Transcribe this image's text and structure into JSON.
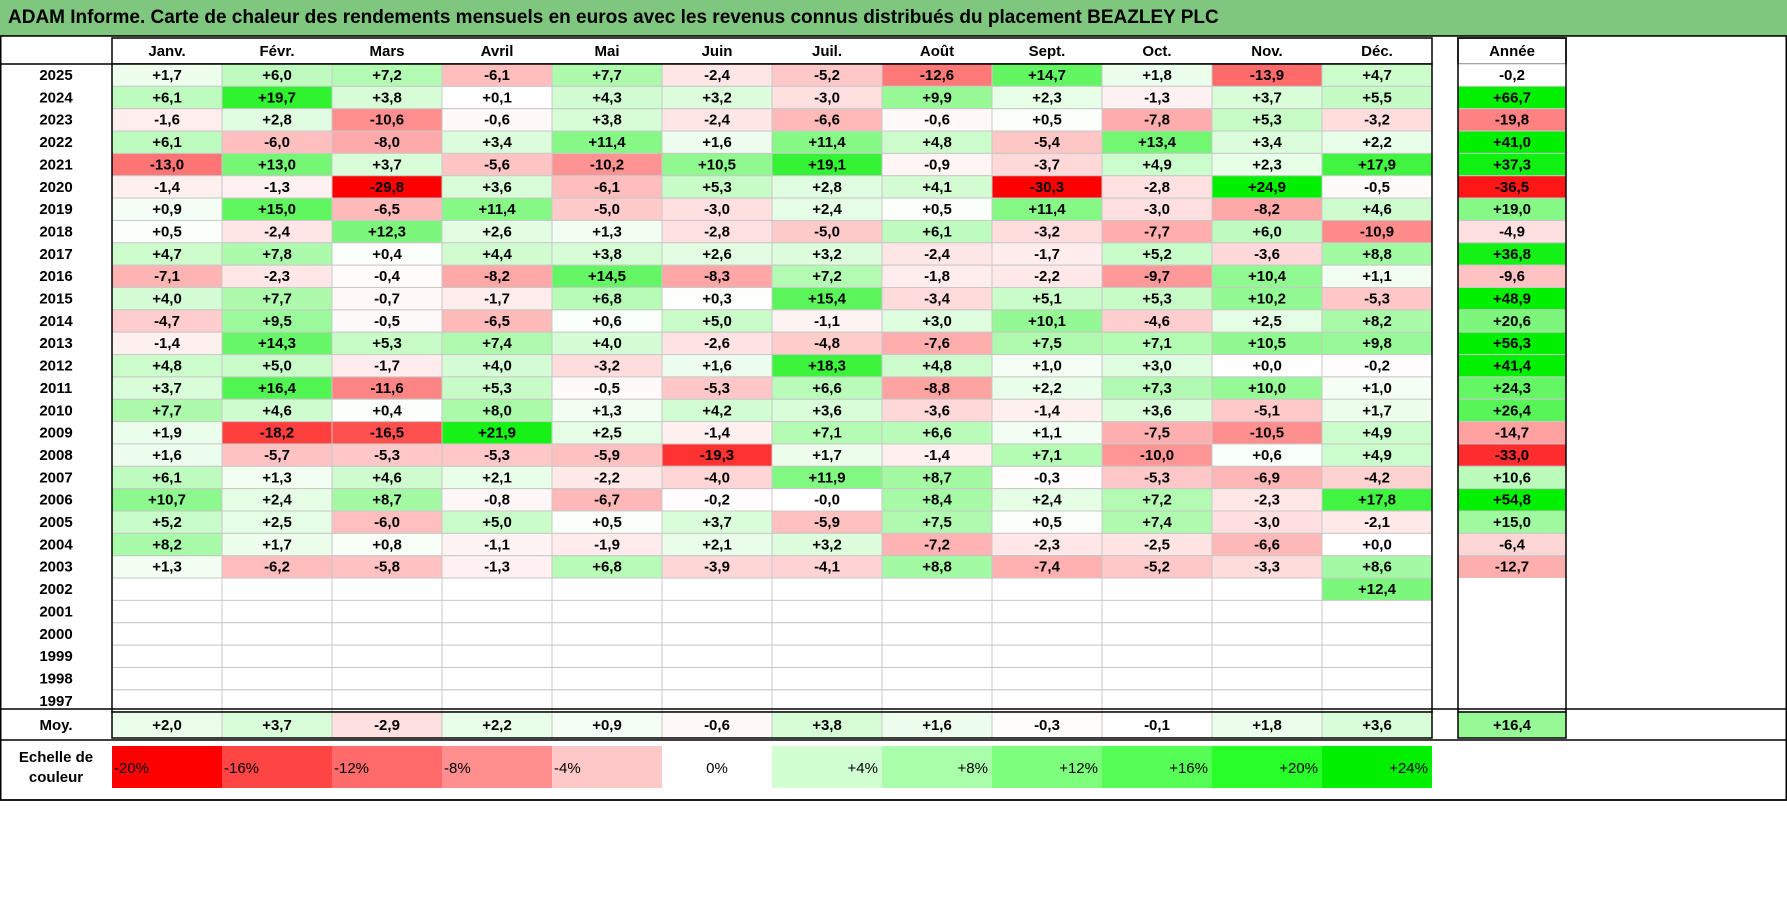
{
  "title": "ADAM Informe. Carte de chaleur des rendements mensuels en euros avec les revenus connus distribués du placement BEAZLEY PLC",
  "chart_data": {
    "type": "heatmap",
    "months": [
      "Janv.",
      "Févr.",
      "Mars",
      "Avril",
      "Mai",
      "Juin",
      "Juil.",
      "Août",
      "Sept.",
      "Oct.",
      "Nov.",
      "Déc."
    ],
    "year_header": "Année",
    "rows": [
      {
        "year": "2025",
        "values": [
          "+1,7",
          "+6,0",
          "+7,2",
          "-6,1",
          "+7,7",
          "-2,4",
          "-5,2",
          "-12,6",
          "+14,7",
          "+1,8",
          "-13,9",
          "+4,7"
        ],
        "annual": "-0,2"
      },
      {
        "year": "2024",
        "values": [
          "+6,1",
          "+19,7",
          "+3,8",
          "+0,1",
          "+4,3",
          "+3,2",
          "-3,0",
          "+9,9",
          "+2,3",
          "-1,3",
          "+3,7",
          "+5,5"
        ],
        "annual": "+66,7"
      },
      {
        "year": "2023",
        "values": [
          "-1,6",
          "+2,8",
          "-10,6",
          "-0,6",
          "+3,8",
          "-2,4",
          "-6,6",
          "-0,6",
          "+0,5",
          "-7,8",
          "+5,3",
          "-3,2"
        ],
        "annual": "-19,8"
      },
      {
        "year": "2022",
        "values": [
          "+6,1",
          "-6,0",
          "-8,0",
          "+3,4",
          "+11,4",
          "+1,6",
          "+11,4",
          "+4,8",
          "-5,4",
          "+13,4",
          "+3,4",
          "+2,2"
        ],
        "annual": "+41,0"
      },
      {
        "year": "2021",
        "values": [
          "-13,0",
          "+13,0",
          "+3,7",
          "-5,6",
          "-10,2",
          "+10,5",
          "+19,1",
          "-0,9",
          "-3,7",
          "+4,9",
          "+2,3",
          "+17,9"
        ],
        "annual": "+37,3"
      },
      {
        "year": "2020",
        "values": [
          "-1,4",
          "-1,3",
          "-29,8",
          "+3,6",
          "-6,1",
          "+5,3",
          "+2,8",
          "+4,1",
          "-30,3",
          "-2,8",
          "+24,9",
          "-0,5"
        ],
        "annual": "-36,5"
      },
      {
        "year": "2019",
        "values": [
          "+0,9",
          "+15,0",
          "-6,5",
          "+11,4",
          "-5,0",
          "-3,0",
          "+2,4",
          "+0,5",
          "+11,4",
          "-3,0",
          "-8,2",
          "+4,6"
        ],
        "annual": "+19,0"
      },
      {
        "year": "2018",
        "values": [
          "+0,5",
          "-2,4",
          "+12,3",
          "+2,6",
          "+1,3",
          "-2,8",
          "-5,0",
          "+6,1",
          "-3,2",
          "-7,7",
          "+6,0",
          "-10,9"
        ],
        "annual": "-4,9"
      },
      {
        "year": "2017",
        "values": [
          "+4,7",
          "+7,8",
          "+0,4",
          "+4,4",
          "+3,8",
          "+2,6",
          "+3,2",
          "-2,4",
          "-1,7",
          "+5,2",
          "-3,6",
          "+8,8"
        ],
        "annual": "+36,8"
      },
      {
        "year": "2016",
        "values": [
          "-7,1",
          "-2,3",
          "-0,4",
          "-8,2",
          "+14,5",
          "-8,3",
          "+7,2",
          "-1,8",
          "-2,2",
          "-9,7",
          "+10,4",
          "+1,1"
        ],
        "annual": "-9,6"
      },
      {
        "year": "2015",
        "values": [
          "+4,0",
          "+7,7",
          "-0,7",
          "-1,7",
          "+6,8",
          "+0,3",
          "+15,4",
          "-3,4",
          "+5,1",
          "+5,3",
          "+10,2",
          "-5,3"
        ],
        "annual": "+48,9"
      },
      {
        "year": "2014",
        "values": [
          "-4,7",
          "+9,5",
          "-0,5",
          "-6,5",
          "+0,6",
          "+5,0",
          "-1,1",
          "+3,0",
          "+10,1",
          "-4,6",
          "+2,5",
          "+8,2"
        ],
        "annual": "+20,6"
      },
      {
        "year": "2013",
        "values": [
          "-1,4",
          "+14,3",
          "+5,3",
          "+7,4",
          "+4,0",
          "-2,6",
          "-4,8",
          "-7,6",
          "+7,5",
          "+7,1",
          "+10,5",
          "+9,8"
        ],
        "annual": "+56,3"
      },
      {
        "year": "2012",
        "values": [
          "+4,8",
          "+5,0",
          "-1,7",
          "+4,0",
          "-3,2",
          "+1,6",
          "+18,3",
          "+4,8",
          "+1,0",
          "+3,0",
          "+0,0",
          "-0,2"
        ],
        "annual": "+41,4"
      },
      {
        "year": "2011",
        "values": [
          "+3,7",
          "+16,4",
          "-11,6",
          "+5,3",
          "-0,5",
          "-5,3",
          "+6,6",
          "-8,8",
          "+2,2",
          "+7,3",
          "+10,0",
          "+1,0"
        ],
        "annual": "+24,3"
      },
      {
        "year": "2010",
        "values": [
          "+7,7",
          "+4,6",
          "+0,4",
          "+8,0",
          "+1,3",
          "+4,2",
          "+3,6",
          "-3,6",
          "-1,4",
          "+3,6",
          "-5,1",
          "+1,7"
        ],
        "annual": "+26,4"
      },
      {
        "year": "2009",
        "values": [
          "+1,9",
          "-18,2",
          "-16,5",
          "+21,9",
          "+2,5",
          "-1,4",
          "+7,1",
          "+6,6",
          "+1,1",
          "-7,5",
          "-10,5",
          "+4,9"
        ],
        "annual": "-14,7"
      },
      {
        "year": "2008",
        "values": [
          "+1,6",
          "-5,7",
          "-5,3",
          "-5,3",
          "-5,9",
          "-19,3",
          "+1,7",
          "-1,4",
          "+7,1",
          "-10,0",
          "+0,6",
          "+4,9"
        ],
        "annual": "-33,0"
      },
      {
        "year": "2007",
        "values": [
          "+6,1",
          "+1,3",
          "+4,6",
          "+2,1",
          "-2,2",
          "-4,0",
          "+11,9",
          "+8,7",
          "-0,3",
          "-5,3",
          "-6,9",
          "-4,2"
        ],
        "annual": "+10,6"
      },
      {
        "year": "2006",
        "values": [
          "+10,7",
          "+2,4",
          "+8,7",
          "-0,8",
          "-6,7",
          "-0,2",
          "-0,0",
          "+8,4",
          "+2,4",
          "+7,2",
          "-2,3",
          "+17,8"
        ],
        "annual": "+54,8"
      },
      {
        "year": "2005",
        "values": [
          "+5,2",
          "+2,5",
          "-6,0",
          "+5,0",
          "+0,5",
          "+3,7",
          "-5,9",
          "+7,5",
          "+0,5",
          "+7,4",
          "-3,0",
          "-2,1"
        ],
        "annual": "+15,0"
      },
      {
        "year": "2004",
        "values": [
          "+8,2",
          "+1,7",
          "+0,8",
          "-1,1",
          "-1,9",
          "+2,1",
          "+3,2",
          "-7,2",
          "-2,3",
          "-2,5",
          "-6,6",
          "+0,0"
        ],
        "annual": "-6,4"
      },
      {
        "year": "2003",
        "values": [
          "+1,3",
          "-6,2",
          "-5,8",
          "-1,3",
          "+6,8",
          "-3,9",
          "-4,1",
          "+8,8",
          "-7,4",
          "-5,2",
          "-3,3",
          "+8,6"
        ],
        "annual": "-12,7"
      },
      {
        "year": "2002",
        "values": [
          "",
          "",
          "",
          "",
          "",
          "",
          "",
          "",
          "",
          "",
          "",
          "+12,4"
        ],
        "annual": ""
      },
      {
        "year": "2001",
        "values": [
          "",
          "",
          "",
          "",
          "",
          "",
          "",
          "",
          "",
          "",
          "",
          ""
        ],
        "annual": ""
      },
      {
        "year": "2000",
        "values": [
          "",
          "",
          "",
          "",
          "",
          "",
          "",
          "",
          "",
          "",
          "",
          ""
        ],
        "annual": ""
      },
      {
        "year": "1999",
        "values": [
          "",
          "",
          "",
          "",
          "",
          "",
          "",
          "",
          "",
          "",
          "",
          ""
        ],
        "annual": ""
      },
      {
        "year": "1998",
        "values": [
          "",
          "",
          "",
          "",
          "",
          "",
          "",
          "",
          "",
          "",
          "",
          ""
        ],
        "annual": ""
      },
      {
        "year": "1997",
        "values": [
          "",
          "",
          "",
          "",
          "",
          "",
          "",
          "",
          "",
          "",
          "",
          ""
        ],
        "annual": ""
      }
    ],
    "average": {
      "label": "Moy.",
      "values": [
        "+2,0",
        "+3,7",
        "-2,9",
        "+2,2",
        "+0,9",
        "-0,6",
        "+3,8",
        "+1,6",
        "-0,3",
        "-0,1",
        "+1,8",
        "+3,6"
      ],
      "annual": "+16,4"
    },
    "scale": {
      "label": "Echelle de couleur",
      "stops": [
        "-20%",
        "-16%",
        "-12%",
        "-8%",
        "-4%",
        "0%",
        "+4%",
        "+8%",
        "+12%",
        "+16%",
        "+20%",
        "+24%"
      ],
      "colors": [
        "#ff0000",
        "#ff4444",
        "#ff6b6b",
        "#ff8f8f",
        "#ffc8c8",
        "#ffffff",
        "#d2ffd2",
        "#aaffaa",
        "#7dff7d",
        "#55ff55",
        "#28ff28",
        "#00f000"
      ]
    }
  }
}
